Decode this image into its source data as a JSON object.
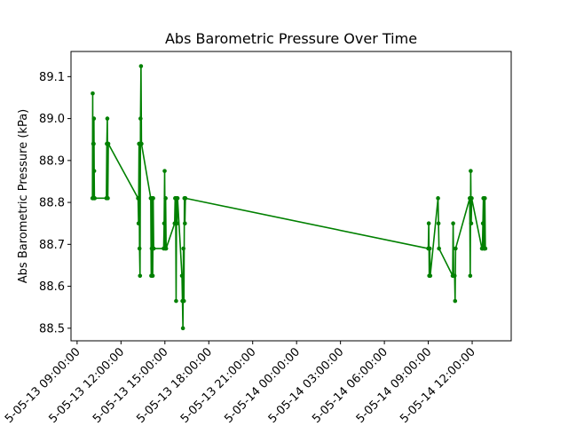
{
  "chart_data": {
    "type": "line",
    "title": "Abs Barometric Pressure Over Time",
    "xlabel": "",
    "ylabel": "Abs Barometric Pressure (kPa)",
    "color": "#008000",
    "marker": "circle",
    "grid": false,
    "legend": "none",
    "x_ticks": [
      "2025-05-13 09:00:00",
      "2025-05-13 12:00:00",
      "2025-05-13 15:00:00",
      "2025-05-13 18:00:00",
      "2025-05-13 21:00:00",
      "2025-05-14 00:00:00",
      "2025-05-14 03:00:00",
      "2025-05-14 06:00:00",
      "2025-05-14 09:00:00",
      "2025-05-14 12:00:00"
    ],
    "x_ticks_display": [
      "5-05-13 09:00:00",
      "5-05-13 12:00:00",
      "5-05-13 15:00:00",
      "5-05-13 18:00:00",
      "5-05-13 21:00:00",
      "5-05-14 00:00:00",
      "5-05-14 03:00:00",
      "5-05-14 06:00:00",
      "5-05-14 09:00:00",
      "5-05-14 12:00:00"
    ],
    "xlim": [
      "2025-05-13 08:35",
      "2025-05-14 14:40"
    ],
    "y_ticks": [
      88.5,
      88.6,
      88.7,
      88.8,
      88.9,
      89.0,
      89.1
    ],
    "y_tick_labels": [
      "88.5",
      "88.6",
      "88.7",
      "88.8",
      "88.9",
      "89.0",
      "89.1"
    ],
    "ylim": [
      88.47,
      89.16
    ],
    "series": [
      {
        "x": [
          "2025-05-13 10:03",
          "2025-05-13 10:04",
          "2025-05-13 10:05",
          "2025-05-13 10:06",
          "2025-05-13 10:07",
          "2025-05-13 10:08",
          "2025-05-13 10:09",
          "2025-05-13 10:10",
          "2025-05-13 10:11",
          "2025-05-13 10:12",
          "2025-05-13 11:00",
          "2025-05-13 11:02",
          "2025-05-13 11:04",
          "2025-05-13 11:06",
          "2025-05-13 11:08",
          "2025-05-13 13:10",
          "2025-05-13 13:12",
          "2025-05-13 13:14",
          "2025-05-13 13:16",
          "2025-05-13 13:18",
          "2025-05-13 13:20",
          "2025-05-13 13:22",
          "2025-05-13 13:24",
          "2025-05-13 14:02",
          "2025-05-13 14:04",
          "2025-05-13 14:06",
          "2025-05-13 14:08",
          "2025-05-13 14:10",
          "2025-05-13 14:12",
          "2025-05-13 14:14",
          "2025-05-13 14:55",
          "2025-05-13 14:57",
          "2025-05-13 14:59",
          "2025-05-13 15:01",
          "2025-05-13 15:03",
          "2025-05-13 15:05",
          "2025-05-13 15:40",
          "2025-05-13 15:42",
          "2025-05-13 15:44",
          "2025-05-13 15:46",
          "2025-05-13 15:48",
          "2025-05-13 15:50",
          "2025-05-13 15:52",
          "2025-05-13 16:10",
          "2025-05-13 16:12",
          "2025-05-13 16:14",
          "2025-05-13 16:16",
          "2025-05-13 16:18",
          "2025-05-13 16:20",
          "2025-05-13 16:22",
          "2025-05-13 16:24",
          "2025-05-14 09:00",
          "2025-05-14 09:02",
          "2025-05-14 09:04",
          "2025-05-14 09:06",
          "2025-05-14 09:08",
          "2025-05-14 09:40",
          "2025-05-14 09:42",
          "2025-05-14 09:44",
          "2025-05-14 10:40",
          "2025-05-14 10:42",
          "2025-05-14 10:44",
          "2025-05-14 10:46",
          "2025-05-14 10:48",
          "2025-05-14 10:50",
          "2025-05-14 10:52",
          "2025-05-14 11:50",
          "2025-05-14 11:52",
          "2025-05-14 11:54",
          "2025-05-14 11:56",
          "2025-05-14 11:58",
          "2025-05-14 12:40",
          "2025-05-14 12:42",
          "2025-05-14 12:44",
          "2025-05-14 12:46",
          "2025-05-14 12:48",
          "2025-05-14 12:50",
          "2025-05-14 12:52",
          "2025-05-14 12:54"
        ],
        "y": [
          88.81,
          89.06,
          88.81,
          88.94,
          88.81,
          88.94,
          89.0,
          88.875,
          88.81,
          88.81,
          88.81,
          88.94,
          89.0,
          88.81,
          88.94,
          88.81,
          88.75,
          88.94,
          88.69,
          88.625,
          89.0,
          89.125,
          88.94,
          88.81,
          88.625,
          88.69,
          88.81,
          88.625,
          88.81,
          88.69,
          88.69,
          88.75,
          88.875,
          88.69,
          88.81,
          88.69,
          88.75,
          88.81,
          88.81,
          88.565,
          88.81,
          88.75,
          88.81,
          88.625,
          88.565,
          88.5,
          88.69,
          88.565,
          88.81,
          88.75,
          88.81,
          88.69,
          88.75,
          88.625,
          88.69,
          88.625,
          88.81,
          88.75,
          88.69,
          88.625,
          88.75,
          88.625,
          88.625,
          88.625,
          88.565,
          88.69,
          88.81,
          88.625,
          88.875,
          88.75,
          88.81,
          88.69,
          88.69,
          88.75,
          88.81,
          88.69,
          88.69,
          88.81,
          88.69
        ]
      }
    ]
  }
}
